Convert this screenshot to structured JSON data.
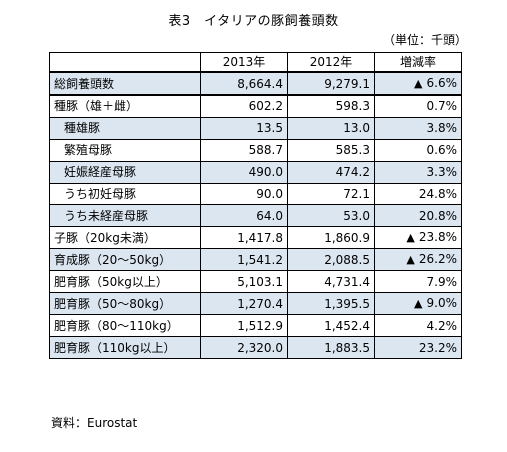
{
  "title": "表3　イタリアの豚飼養頭数",
  "unit_note": "（単位：千頭）",
  "columns": [
    "",
    "2013年",
    "2012年",
    "増減率"
  ],
  "rows": [
    {
      "label": "総飼養頭数",
      "v2013": "8,664.4",
      "v2012": "9,279.1",
      "change_mark": "▲",
      "change": "6.6%",
      "shaded": true,
      "indent": false
    },
    {
      "label": "種豚（雄＋雌）",
      "v2013": "602.2",
      "v2012": "598.3",
      "change_mark": "",
      "change": "0.7%",
      "shaded": false,
      "indent": false
    },
    {
      "label": "種雄豚",
      "v2013": "13.5",
      "v2012": "13.0",
      "change_mark": "",
      "change": "3.8%",
      "shaded": true,
      "indent": true
    },
    {
      "label": "繁殖母豚",
      "v2013": "588.7",
      "v2012": "585.3",
      "change_mark": "",
      "change": "0.6%",
      "shaded": false,
      "indent": true
    },
    {
      "label": "妊娠経産母豚",
      "v2013": "490.0",
      "v2012": "474.2",
      "change_mark": "",
      "change": "3.3%",
      "shaded": true,
      "indent": true
    },
    {
      "label": "うち初妊母豚",
      "v2013": "90.0",
      "v2012": "72.1",
      "change_mark": "",
      "change": "24.8%",
      "shaded": false,
      "indent": true
    },
    {
      "label": "うち未経産母豚",
      "v2013": "64.0",
      "v2012": "53.0",
      "change_mark": "",
      "change": "20.8%",
      "shaded": true,
      "indent": true
    },
    {
      "label": "子豚（20kg未満）",
      "v2013": "1,417.8",
      "v2012": "1,860.9",
      "change_mark": "▲",
      "change": "23.8%",
      "shaded": false,
      "indent": false
    },
    {
      "label": "育成豚（20～50kg）",
      "v2013": "1,541.2",
      "v2012": "2,088.5",
      "change_mark": "▲",
      "change": "26.2%",
      "shaded": true,
      "indent": false
    },
    {
      "label": "肥育豚（50kg以上）",
      "v2013": "5,103.1",
      "v2012": "4,731.4",
      "change_mark": "",
      "change": "7.9%",
      "shaded": false,
      "indent": false
    },
    {
      "label": "肥育豚（50～80kg）",
      "v2013": "1,270.4",
      "v2012": "1,395.5",
      "change_mark": "▲",
      "change": "9.0%",
      "shaded": true,
      "indent": false
    },
    {
      "label": "肥育豚（80～110kg）",
      "v2013": "1,512.9",
      "v2012": "1,452.4",
      "change_mark": "",
      "change": "4.2%",
      "shaded": false,
      "indent": false
    },
    {
      "label": "肥育豚（110kg以上）",
      "v2013": "2,320.0",
      "v2012": "1,883.5",
      "change_mark": "",
      "change": "23.2%",
      "shaded": true,
      "indent": false
    }
  ],
  "source": "資料：Eurostat",
  "colors": {
    "shade": "#dce6f1",
    "border": "#000000"
  }
}
